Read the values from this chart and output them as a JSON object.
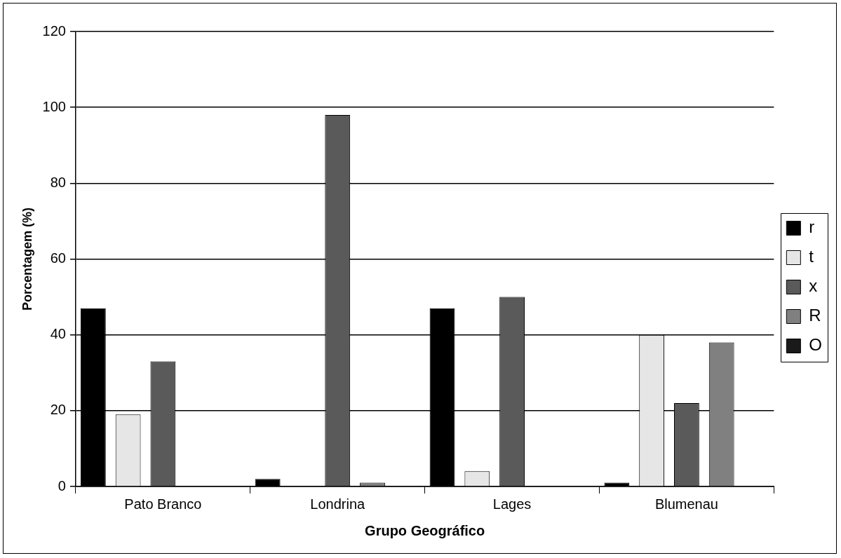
{
  "chart_data": {
    "type": "bar",
    "xlabel": "Grupo Geográfico",
    "ylabel": "Porcentagem (%)",
    "categories": [
      "Pato Branco",
      "Londrina",
      "Lages",
      "Blumenau"
    ],
    "series": [
      {
        "name": "r",
        "color": "#000000",
        "values": [
          47,
          2,
          47,
          1
        ]
      },
      {
        "name": "t",
        "color": "#e6e6e6",
        "values": [
          19,
          0,
          4,
          40
        ]
      },
      {
        "name": "x",
        "color": "#5a5a5a",
        "values": [
          33,
          98,
          50,
          22
        ]
      },
      {
        "name": "R",
        "color": "#808080",
        "values": [
          0,
          1,
          0,
          38
        ]
      },
      {
        "name": "O",
        "color": "#1a1a1a",
        "values": [
          0,
          0,
          0,
          0
        ]
      }
    ],
    "ylim": [
      0,
      120
    ],
    "yticks": [
      0,
      20,
      40,
      60,
      80,
      100,
      120
    ],
    "grid": "y",
    "legend": "right"
  }
}
